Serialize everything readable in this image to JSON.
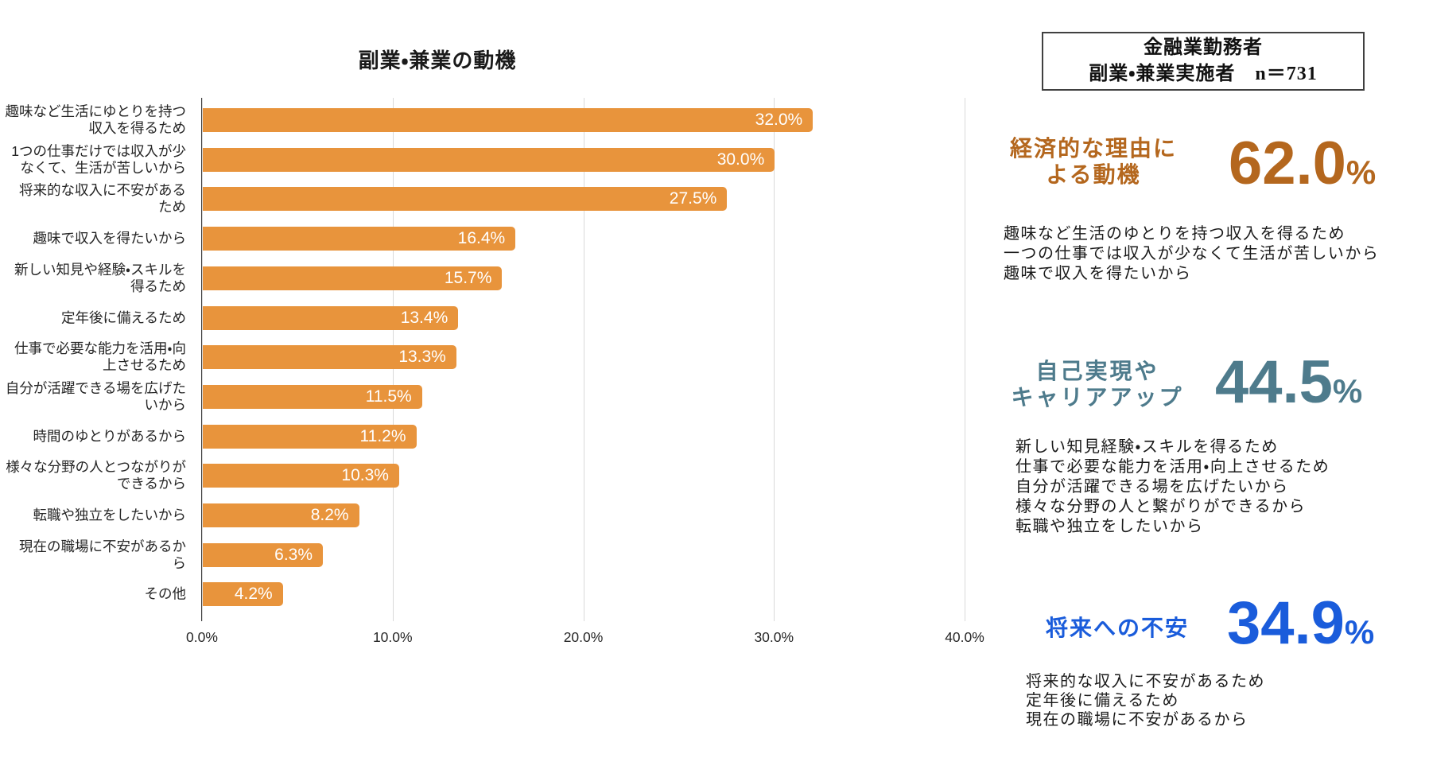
{
  "chart_data": {
    "type": "bar",
    "orientation": "horizontal",
    "title": "副業・兼業の動機",
    "categories": [
      "趣味など生活にゆとりを持つ\n収入を得るため",
      "1つの仕事だけでは収入が少\nなくて、生活が苦しいから",
      "将来的な収入に不安がある\nため",
      "趣味で収入を得たいから",
      "新しい知見や経験・スキルを\n得るため",
      "定年後に備えるため",
      "仕事で必要な能力を活用・向\n上させるため",
      "自分が活躍できる場を広げた\nいから",
      "時間のゆとりがあるから",
      "様々な分野の人とつながりが\nできるから",
      "転職や独立をしたいから",
      "現在の職場に不安があるか\nら",
      "その他"
    ],
    "values": [
      32.0,
      30.0,
      27.5,
      16.4,
      15.7,
      13.4,
      13.3,
      11.5,
      11.2,
      10.3,
      8.2,
      6.3,
      4.2
    ],
    "value_labels": [
      "32.0%",
      "30.0%",
      "27.5%",
      "16.4%",
      "15.7%",
      "13.4%",
      "13.3%",
      "11.5%",
      "11.2%",
      "10.3%",
      "8.2%",
      "6.3%",
      "4.2%"
    ],
    "x_ticks": [
      "0.0%",
      "10.0%",
      "20.0%",
      "30.0%",
      "40.0%"
    ],
    "xlim": [
      0,
      40
    ],
    "bar_color": "#E8943C",
    "grid": "vertical-only",
    "legend": "none"
  },
  "sample_box": {
    "text": "金融業勤務者\n副業・兼業実施者　n＝731"
  },
  "sections": [
    {
      "title": "経済的な理由に\nよる動機",
      "value": "62.0",
      "unit": "%",
      "color": "#B4671E",
      "items": [
        "趣味など生活のゆとりを持つ収入を得るため",
        "一つの仕事では収入が少なくて生活が苦しいから",
        "趣味で収入を得たいから"
      ]
    },
    {
      "title": "自己実現や\nキャリアアップ",
      "value": "44.5",
      "unit": "%",
      "color": "#4E7B8C",
      "items": [
        "新しい知見経験・スキルを得るため",
        "仕事で必要な能力を活用・向上させるため",
        "自分が活躍できる場を広げたいから",
        "様々な分野の人と繋がりができるから",
        "転職や独立をしたいから"
      ]
    },
    {
      "title": "将来への不安",
      "value": "34.9",
      "unit": "%",
      "color": "#1A5CDB",
      "items": [
        "将来的な収入に不安があるため",
        "定年後に備えるため",
        "現在の職場に不安があるから"
      ]
    }
  ]
}
